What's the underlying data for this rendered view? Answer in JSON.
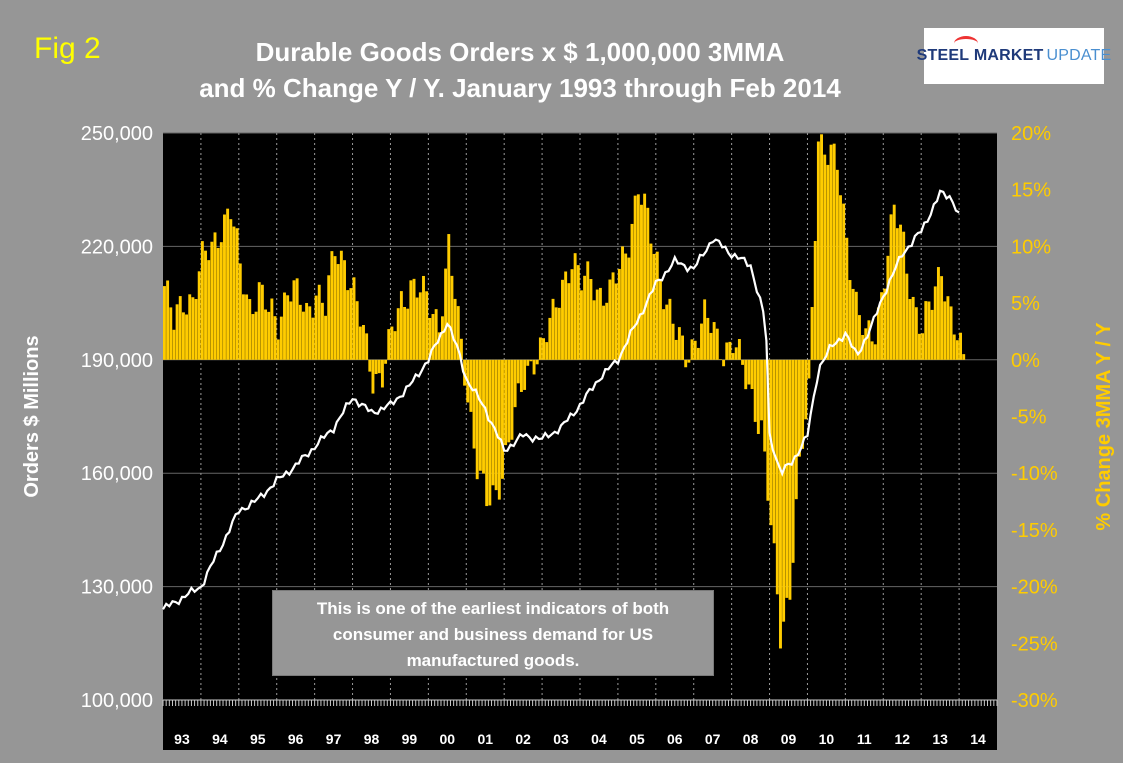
{
  "header": {
    "fig_label": "Fig 2",
    "title_line1": "Durable Goods Orders x $ 1,000,000 3MMA",
    "title_line2": "and % Change Y / Y. January 1993 through Feb 2014"
  },
  "logo": {
    "part1": "STEEL",
    "part2": "MARKET",
    "part3": "UPDATE"
  },
  "note": {
    "line1": "This is one of the earliest indicators of both",
    "line2": "consumer and business demand for US",
    "line3": "manufactured goods."
  },
  "colors": {
    "background": "#969696",
    "plot_bg": "#000000",
    "bars": "#ffcc00",
    "line": "#ffffff",
    "fig_label": "#ffff00",
    "right_axis_text": "#ffcc00"
  },
  "chart_data": {
    "type": "bar",
    "title": "Durable Goods Orders x $ 1,000,000 3MMA and % Change Y / Y. January 1993 through Feb 2014",
    "ylabel": "Orders $ Millions",
    "y2label": "% Change 3MMA Y / Y",
    "ylim": [
      100000,
      250000
    ],
    "y2lim": [
      -30,
      20
    ],
    "yticks": [
      "100,000",
      "130,000",
      "160,000",
      "190,000",
      "220,000",
      "250,000"
    ],
    "y2ticks": [
      "-30%",
      "-25%",
      "-20%",
      "-15%",
      "-10%",
      "-5%",
      "0%",
      "5%",
      "10%",
      "15%",
      "20%"
    ],
    "categories": [
      "93",
      "94",
      "95",
      "96",
      "97",
      "98",
      "99",
      "00",
      "01",
      "02",
      "03",
      "04",
      "05",
      "06",
      "07",
      "08",
      "09",
      "10",
      "11",
      "12",
      "13",
      "14"
    ],
    "grid": "horizontal",
    "series": [
      {
        "name": "Durable Goods Orders 3MMA",
        "axis": "left",
        "type": "line",
        "points": [
          [
            1993.0,
            124000
          ],
          [
            1993.5,
            127000
          ],
          [
            1994.0,
            130000
          ],
          [
            1994.5,
            140000
          ],
          [
            1995.0,
            150000
          ],
          [
            1995.5,
            153000
          ],
          [
            1996.0,
            158000
          ],
          [
            1996.5,
            162000
          ],
          [
            1997.0,
            167000
          ],
          [
            1997.5,
            172000
          ],
          [
            1998.0,
            180000
          ],
          [
            1998.5,
            176000
          ],
          [
            1999.0,
            178000
          ],
          [
            1999.5,
            183000
          ],
          [
            2000.0,
            190000
          ],
          [
            2000.5,
            200000
          ],
          [
            2000.8,
            192000
          ],
          [
            2001.0,
            185000
          ],
          [
            2001.5,
            177000
          ],
          [
            2002.0,
            166000
          ],
          [
            2002.5,
            170000
          ],
          [
            2003.0,
            169000
          ],
          [
            2003.5,
            172000
          ],
          [
            2004.0,
            178000
          ],
          [
            2004.5,
            185000
          ],
          [
            2005.0,
            190000
          ],
          [
            2005.5,
            200000
          ],
          [
            2006.0,
            210000
          ],
          [
            2006.5,
            216000
          ],
          [
            2007.0,
            214000
          ],
          [
            2007.5,
            222000
          ],
          [
            2008.0,
            218000
          ],
          [
            2008.5,
            215000
          ],
          [
            2008.9,
            200000
          ],
          [
            2009.0,
            170000
          ],
          [
            2009.3,
            160000
          ],
          [
            2009.6,
            163000
          ],
          [
            2010.0,
            170000
          ],
          [
            2010.3,
            188000
          ],
          [
            2010.6,
            193000
          ],
          [
            2011.0,
            197000
          ],
          [
            2011.3,
            191000
          ],
          [
            2011.7,
            199000
          ],
          [
            2012.0,
            207000
          ],
          [
            2012.5,
            218000
          ],
          [
            2013.0,
            224000
          ],
          [
            2013.5,
            234000
          ],
          [
            2013.8,
            233000
          ],
          [
            2014.0,
            228000
          ]
        ]
      },
      {
        "name": "% Change 3MMA Y / Y",
        "axis": "right",
        "type": "bar",
        "points": [
          [
            1993.0,
            6.5
          ],
          [
            1993.25,
            3.0
          ],
          [
            1993.5,
            5.5
          ],
          [
            1993.75,
            5.5
          ],
          [
            1994.0,
            8.5
          ],
          [
            1994.25,
            10.0
          ],
          [
            1994.5,
            12.0
          ],
          [
            1994.75,
            13.0
          ],
          [
            1995.0,
            8.0
          ],
          [
            1995.25,
            5.0
          ],
          [
            1995.5,
            6.0
          ],
          [
            1995.75,
            4.0
          ],
          [
            1996.0,
            3.5
          ],
          [
            1996.25,
            6.5
          ],
          [
            1996.5,
            5.5
          ],
          [
            1996.75,
            4.0
          ],
          [
            1997.0,
            6.5
          ],
          [
            1997.25,
            4.5
          ],
          [
            1997.5,
            9.5
          ],
          [
            1997.75,
            9.0
          ],
          [
            1998.0,
            6.0
          ],
          [
            1998.25,
            2.0
          ],
          [
            1998.5,
            -1.5
          ],
          [
            1998.75,
            -1.0
          ],
          [
            1999.0,
            2.0
          ],
          [
            1999.25,
            5.0
          ],
          [
            1999.5,
            7.0
          ],
          [
            1999.75,
            6.0
          ],
          [
            2000.0,
            4.5
          ],
          [
            2000.25,
            3.5
          ],
          [
            2000.5,
            10.0
          ],
          [
            2000.75,
            3.0
          ],
          [
            2001.0,
            -3.0
          ],
          [
            2001.25,
            -9.0
          ],
          [
            2001.5,
            -13.0
          ],
          [
            2001.75,
            -12.0
          ],
          [
            2002.0,
            -8.0
          ],
          [
            2002.25,
            -5.0
          ],
          [
            2002.5,
            -2.0
          ],
          [
            2002.75,
            0.5
          ],
          [
            2003.0,
            1.5
          ],
          [
            2003.25,
            3.5
          ],
          [
            2003.5,
            7.0
          ],
          [
            2003.75,
            9.0
          ],
          [
            2004.0,
            6.5
          ],
          [
            2004.25,
            7.5
          ],
          [
            2004.5,
            6.0
          ],
          [
            2004.75,
            5.5
          ],
          [
            2005.0,
            8.0
          ],
          [
            2005.25,
            11.0
          ],
          [
            2005.5,
            15.0
          ],
          [
            2005.75,
            12.0
          ],
          [
            2006.0,
            9.0
          ],
          [
            2006.25,
            5.0
          ],
          [
            2006.5,
            2.0
          ],
          [
            2006.75,
            0.5
          ],
          [
            2007.0,
            2.0
          ],
          [
            2007.25,
            3.5
          ],
          [
            2007.5,
            2.5
          ],
          [
            2007.75,
            1.0
          ],
          [
            2008.0,
            1.5
          ],
          [
            2008.25,
            -1.0
          ],
          [
            2008.5,
            -3.0
          ],
          [
            2008.75,
            -6.0
          ],
          [
            2009.0,
            -15.0
          ],
          [
            2009.25,
            -24.0
          ],
          [
            2009.5,
            -20.0
          ],
          [
            2009.75,
            -10.0
          ],
          [
            2010.0,
            -3.0
          ],
          [
            2010.25,
            20.0
          ],
          [
            2010.5,
            18.0
          ],
          [
            2010.75,
            17.0
          ],
          [
            2011.0,
            11.0
          ],
          [
            2011.25,
            5.0
          ],
          [
            2011.5,
            1.5
          ],
          [
            2011.75,
            2.5
          ],
          [
            2012.0,
            8.0
          ],
          [
            2012.25,
            13.0
          ],
          [
            2012.5,
            10.0
          ],
          [
            2012.75,
            5.5
          ],
          [
            2013.0,
            2.5
          ],
          [
            2013.25,
            5.0
          ],
          [
            2013.5,
            8.5
          ],
          [
            2013.75,
            4.0
          ],
          [
            2014.0,
            0.5
          ]
        ]
      }
    ]
  }
}
